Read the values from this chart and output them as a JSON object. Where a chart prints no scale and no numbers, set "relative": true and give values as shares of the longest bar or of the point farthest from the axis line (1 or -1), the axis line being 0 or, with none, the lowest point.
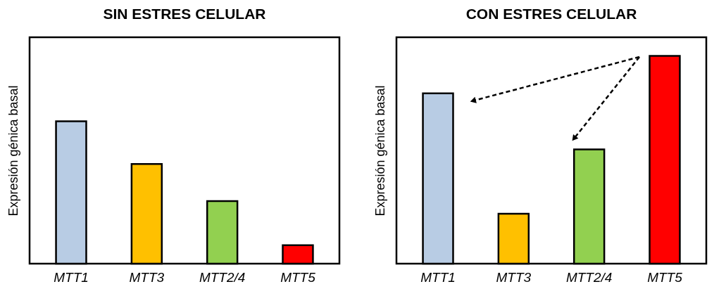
{
  "chart_data": [
    {
      "type": "bar",
      "title": "SIN ESTRES CELULAR",
      "ylabel": "Expresión génica basal",
      "relative": true,
      "categories": [
        "MTT1",
        "MTT3",
        "MTT2/4",
        "MTT5"
      ],
      "values": [
        1,
        0.7,
        0.44,
        0.13
      ],
      "colors": [
        "#b8cce4",
        "#ffc000",
        "#92d050",
        "#ff0000"
      ]
    },
    {
      "type": "bar",
      "title": "CON ESTRES CELULAR",
      "ylabel": "Expresión génica basal",
      "relative": true,
      "categories": [
        "MTT1",
        "MTT3",
        "MTT2/4",
        "MTT5"
      ],
      "values": [
        0.82,
        0.24,
        0.55,
        1
      ],
      "colors": [
        "#b8cce4",
        "#ffc000",
        "#92d050",
        "#ff0000"
      ]
    }
  ]
}
